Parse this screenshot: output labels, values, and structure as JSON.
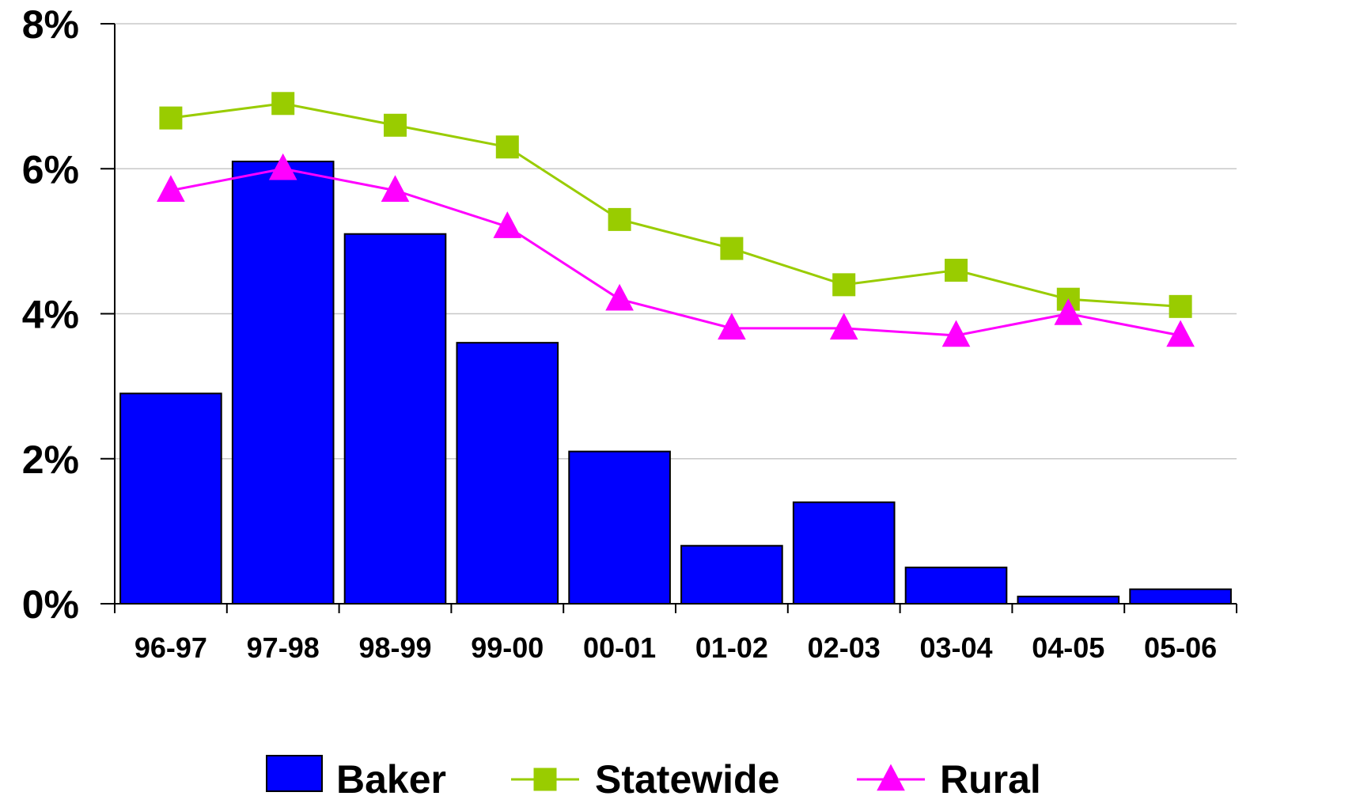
{
  "chart_data": {
    "type": "bar",
    "categories": [
      "96-97",
      "97-98",
      "98-99",
      "99-00",
      "00-01",
      "01-02",
      "02-03",
      "03-04",
      "04-05",
      "05-06"
    ],
    "series": [
      {
        "name": "Baker",
        "kind": "bar",
        "color": "#0000ff",
        "values": [
          2.9,
          6.1,
          5.1,
          3.6,
          2.1,
          0.8,
          1.4,
          0.5,
          0.1,
          0.2
        ]
      },
      {
        "name": "Statewide",
        "kind": "line",
        "marker": "square",
        "color": "#99cc00",
        "values": [
          6.7,
          6.9,
          6.6,
          6.3,
          5.3,
          4.9,
          4.4,
          4.6,
          4.2,
          4.1
        ]
      },
      {
        "name": "Rural",
        "kind": "line",
        "marker": "triangle",
        "color": "#ff00ff",
        "values": [
          5.7,
          6.0,
          5.7,
          5.2,
          4.2,
          3.8,
          3.8,
          3.7,
          4.0,
          3.7
        ]
      }
    ],
    "y_ticks": [
      {
        "value": 0,
        "label": "0%"
      },
      {
        "value": 2,
        "label": "2%"
      },
      {
        "value": 4,
        "label": "4%"
      },
      {
        "value": 6,
        "label": "6%"
      },
      {
        "value": 8,
        "label": "8%"
      }
    ],
    "ylim": [
      0,
      8
    ],
    "grid": true,
    "legend_position": "bottom",
    "title": "",
    "xlabel": "",
    "ylabel": ""
  }
}
